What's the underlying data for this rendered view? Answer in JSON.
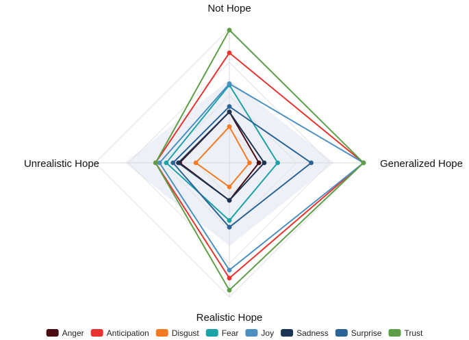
{
  "chart_data": {
    "type": "radar",
    "title": "",
    "axes": [
      "Not Hope",
      "Generalized Hope",
      "Realistic Hope",
      "Unrealistic Hope"
    ],
    "rmax": 1.0,
    "grid": true,
    "background_band": [
      0.62,
      0.78,
      0.62,
      0.78
    ],
    "legend_position": "bottom",
    "series": [
      {
        "name": "Anger",
        "color": "#4a0b12",
        "values": [
          0.38,
          0.22,
          0.28,
          0.37
        ]
      },
      {
        "name": "Anticipation",
        "color": "#e8332f",
        "values": [
          0.82,
          1.0,
          0.86,
          0.55
        ]
      },
      {
        "name": "Disgust",
        "color": "#f47a24",
        "values": [
          0.27,
          0.15,
          0.18,
          0.25
        ]
      },
      {
        "name": "Fear",
        "color": "#1aa2a8",
        "values": [
          0.58,
          0.36,
          0.43,
          0.47
        ]
      },
      {
        "name": "Joy",
        "color": "#4a8fc0",
        "values": [
          0.59,
          1.0,
          0.8,
          0.52
        ]
      },
      {
        "name": "Sadness",
        "color": "#1c3454",
        "values": [
          0.38,
          0.26,
          0.28,
          0.38
        ]
      },
      {
        "name": "Surprise",
        "color": "#2b6496",
        "values": [
          0.42,
          0.61,
          0.48,
          0.42
        ]
      },
      {
        "name": "Trust",
        "color": "#5e9e47",
        "values": [
          0.99,
          1.0,
          0.95,
          0.55
        ]
      }
    ]
  }
}
